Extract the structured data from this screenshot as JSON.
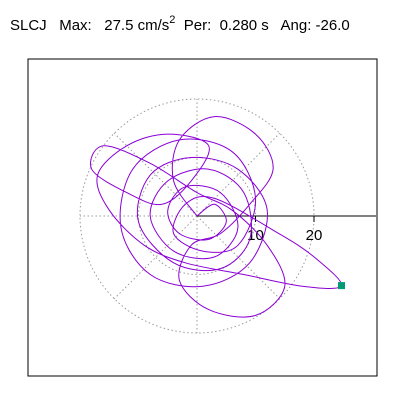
{
  "header": {
    "station": "SLCJ",
    "max_label": "Max:",
    "max_value": "27.5 cm/s",
    "max_sup": "2",
    "per_label": "Per:",
    "per_value": "0.280 s",
    "ang_label": "Ang:",
    "ang_value": "-26.0"
  },
  "chart_data": {
    "type": "polar-orbit",
    "title": "SLCJ  Max: 27.5 cm/s2  Per: 0.280 s  Ang: -26.0",
    "units": "cm/s2",
    "max_amplitude": 27.5,
    "period_s": 0.28,
    "angle_deg": -26.0,
    "radial_ticks": [
      10,
      20
    ],
    "radial_tick_labels": [
      "10",
      "20"
    ],
    "rings": [
      10,
      20
    ],
    "spokes_deg": [
      0,
      45,
      90,
      135,
      180,
      225,
      270,
      315
    ],
    "radial_axis_angle_deg": 0,
    "grid": true,
    "max_point": {
      "x": 24.7,
      "y": -11.9
    },
    "orbit": [
      [
        0,
        0
      ],
      [
        3,
        2
      ],
      [
        5,
        -1
      ],
      [
        2,
        -4
      ],
      [
        -3,
        -3
      ],
      [
        -5,
        1
      ],
      [
        -2,
        5
      ],
      [
        4,
        4
      ],
      [
        7,
        -2
      ],
      [
        3,
        -7
      ],
      [
        -4,
        -6
      ],
      [
        -8,
        0
      ],
      [
        -5,
        6
      ],
      [
        2,
        8
      ],
      [
        8,
        4
      ],
      [
        9,
        -4
      ],
      [
        4,
        -9
      ],
      [
        -4,
        -8
      ],
      [
        -10,
        -1
      ],
      [
        -8,
        7
      ],
      [
        -1,
        10
      ],
      [
        7,
        8
      ],
      [
        12,
        1
      ],
      [
        9,
        -8
      ],
      [
        1,
        -12
      ],
      [
        -8,
        -10
      ],
      [
        -13,
        -2
      ],
      [
        -11,
        8
      ],
      [
        -3,
        13
      ],
      [
        6,
        11
      ],
      [
        10,
        3
      ],
      [
        7,
        -5
      ],
      [
        1,
        -6
      ],
      [
        -4,
        -3
      ],
      [
        -2,
        2
      ],
      [
        3,
        3
      ],
      [
        14,
        -3
      ],
      [
        20,
        -7
      ],
      [
        24.7,
        -11.9
      ],
      [
        18,
        -12
      ],
      [
        8,
        -10
      ],
      [
        -2,
        -8
      ],
      [
        -9,
        -5
      ],
      [
        -15,
        1
      ],
      [
        -17,
        7
      ],
      [
        -12,
        12
      ],
      [
        -5,
        14
      ],
      [
        2,
        12
      ],
      [
        -1,
        6
      ],
      [
        -6,
        2
      ],
      [
        -12,
        4
      ],
      [
        -18,
        8
      ],
      [
        -16,
        12
      ],
      [
        -8,
        9
      ],
      [
        0,
        4
      ],
      [
        6,
        1
      ],
      [
        12,
        -5
      ],
      [
        15,
        -12
      ],
      [
        10,
        -17
      ],
      [
        2,
        -16
      ],
      [
        -3,
        -11
      ],
      [
        -1,
        -5
      ],
      [
        4,
        -3
      ],
      [
        9,
        2
      ],
      [
        13,
        8
      ],
      [
        10,
        14
      ],
      [
        3,
        17
      ],
      [
        -3,
        13
      ],
      [
        -4,
        6
      ],
      [
        0,
        0
      ]
    ]
  }
}
